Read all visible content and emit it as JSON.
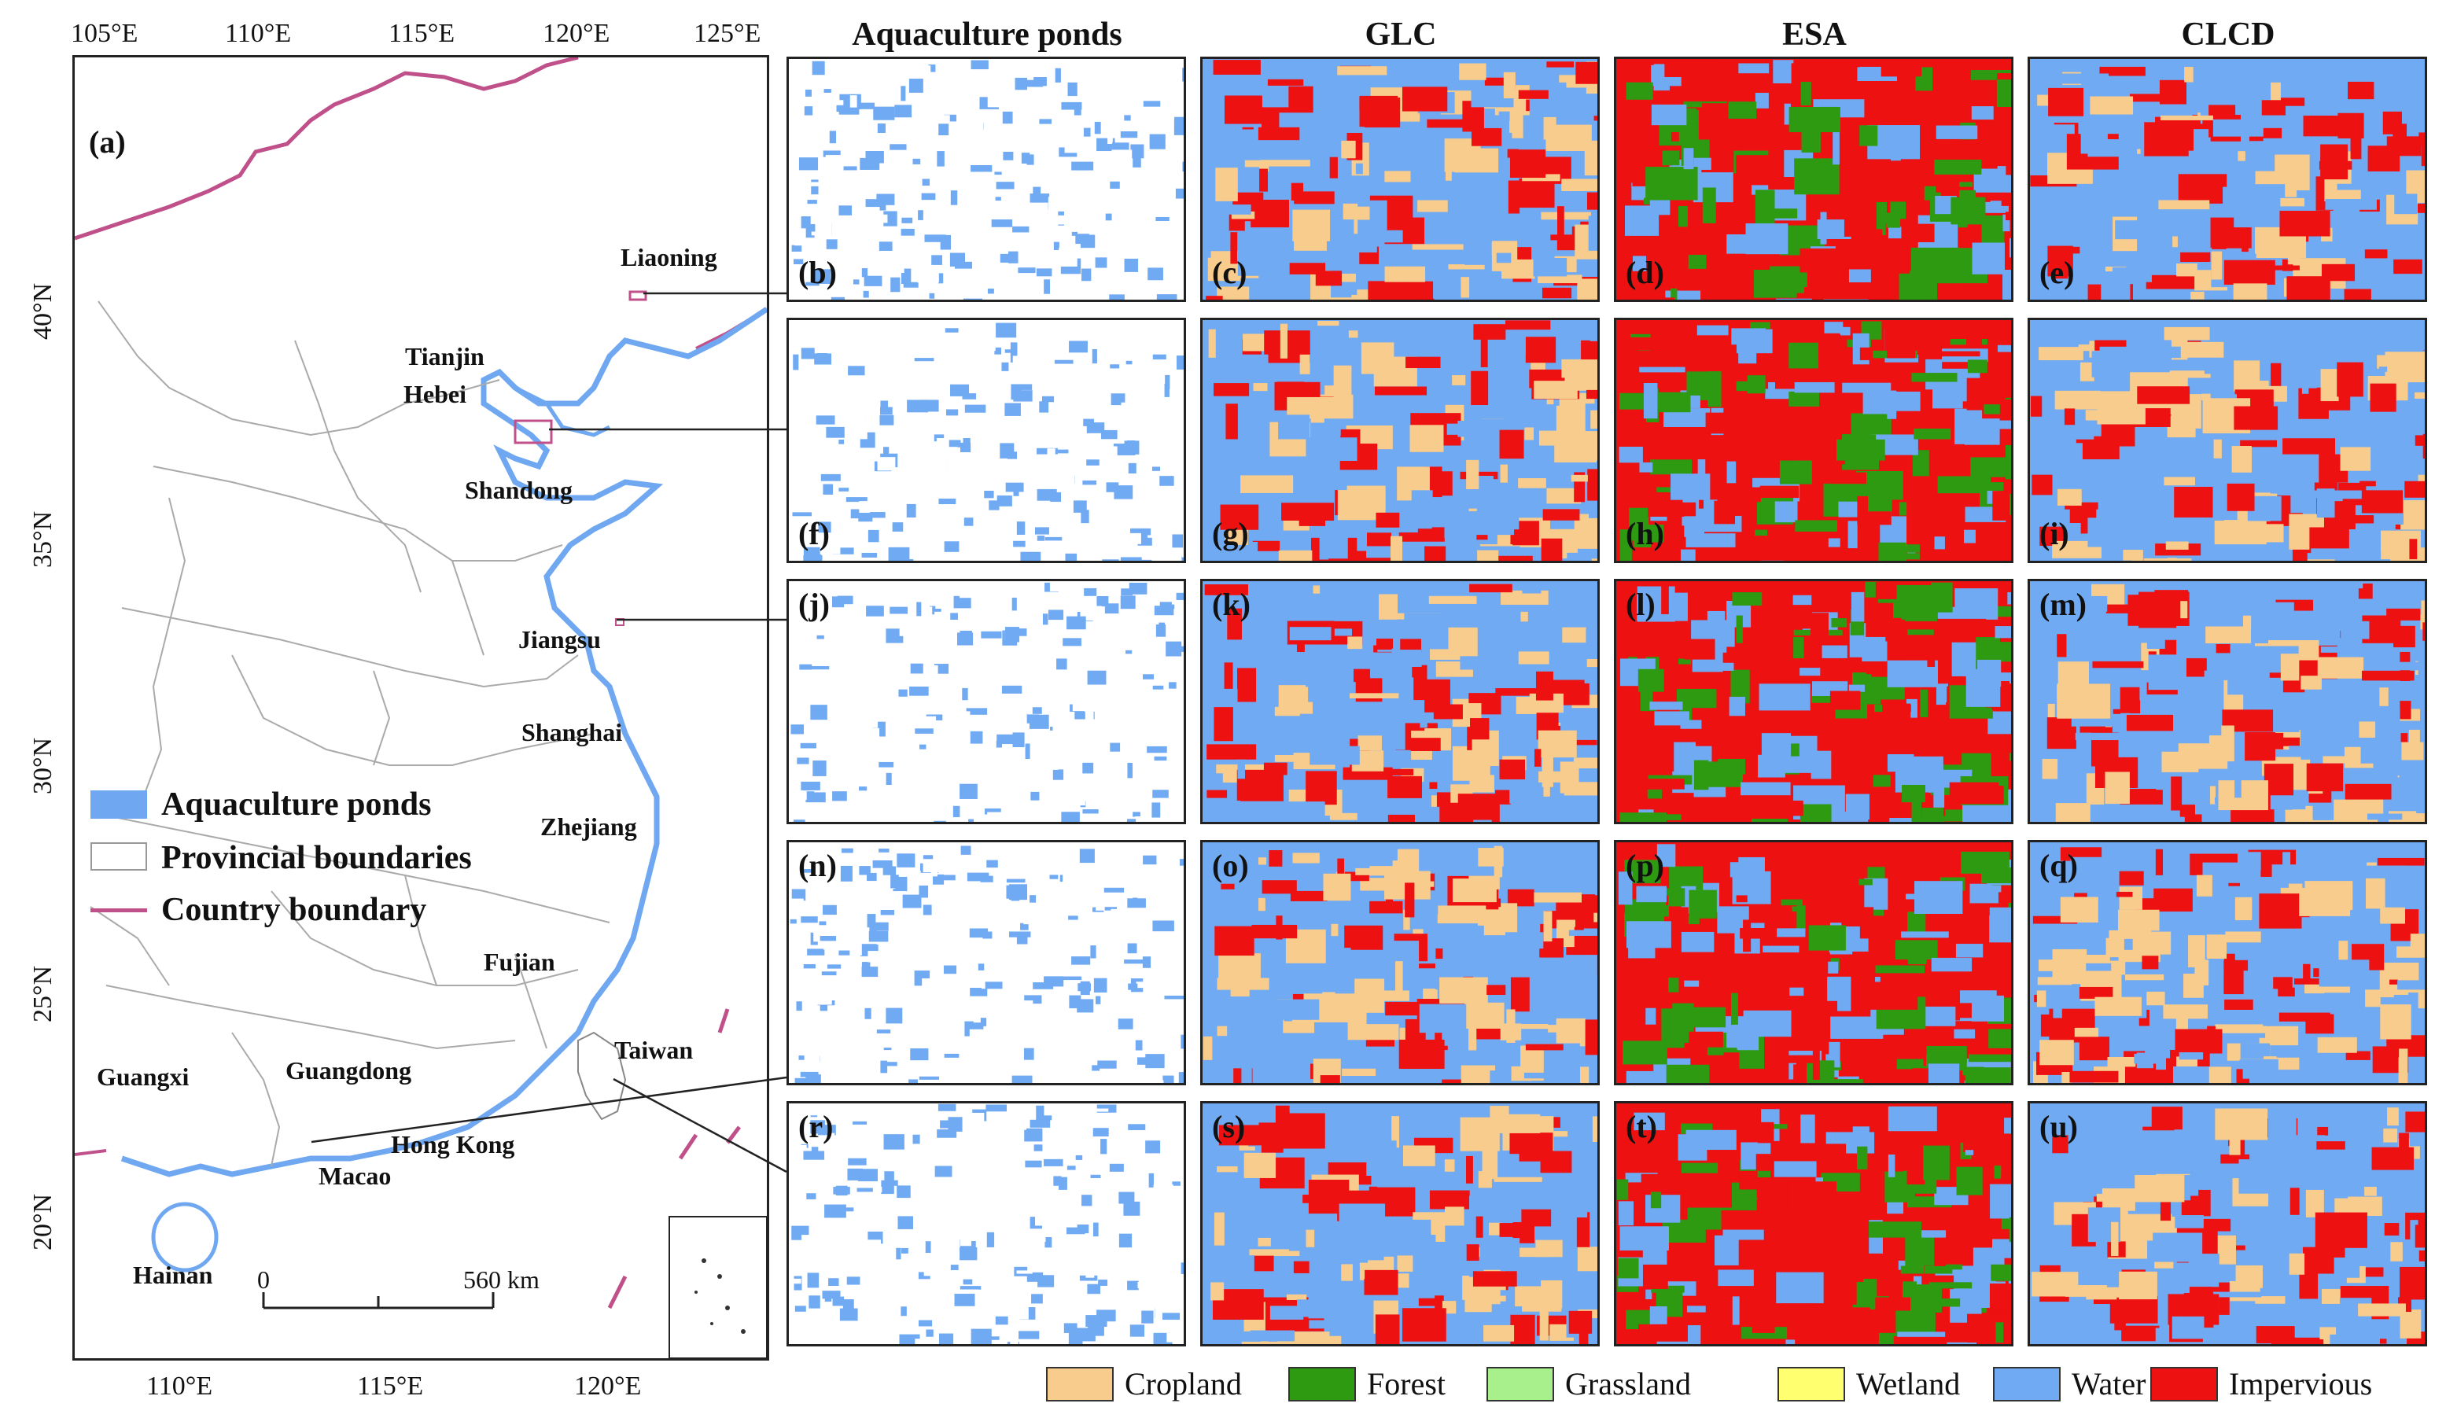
{
  "main_map": {
    "panel_letter": "(a)",
    "lon_ticks_top": [
      "105°E",
      "110°E",
      "115°E",
      "120°E",
      "125°E"
    ],
    "lon_ticks_bottom": [
      "110°E",
      "115°E",
      "120°E"
    ],
    "lat_ticks": [
      "40°N",
      "35°N",
      "30°N",
      "25°N",
      "20°N"
    ],
    "provinces": [
      "Liaoning",
      "Tianjin",
      "Hebei",
      "Shandong",
      "Jiangsu",
      "Shanghai",
      "Zhejiang",
      "Fujian",
      "Taiwan",
      "Guangxi",
      "Guangdong",
      "Hong Kong",
      "Macao",
      "Hainan"
    ],
    "legend": [
      "Aquaculture ponds",
      "Provincial boundaries",
      "Country boundary"
    ],
    "scale": {
      "start": "0",
      "end": "560 km"
    },
    "colors": {
      "ponds": "#6fa8f0",
      "country_boundary": "#c0508a",
      "provincial": "#999999"
    }
  },
  "columns": [
    "Aquaculture ponds",
    "GLC",
    "ESA",
    "CLCD"
  ],
  "panel_letters": [
    [
      "(b)",
      "(c)",
      "(d)",
      "(e)"
    ],
    [
      "(f)",
      "(g)",
      "(h)",
      "(i)"
    ],
    [
      "(j)",
      "(k)",
      "(l)",
      "(m)"
    ],
    [
      "(n)",
      "(o)",
      "(p)",
      "(q)"
    ],
    [
      "(r)",
      "(s)",
      "(t)",
      "(u)"
    ]
  ],
  "land_cover_legend": [
    {
      "label": "Cropland",
      "color": "#f8cc8c"
    },
    {
      "label": "Forest",
      "color": "#2e9a12"
    },
    {
      "label": "Grassland",
      "color": "#a8f08c"
    },
    {
      "label": "Wetland",
      "color": "#ffff70"
    },
    {
      "label": "Water",
      "color": "#70aaf2"
    },
    {
      "label": "Impervious",
      "color": "#ee1111"
    }
  ]
}
